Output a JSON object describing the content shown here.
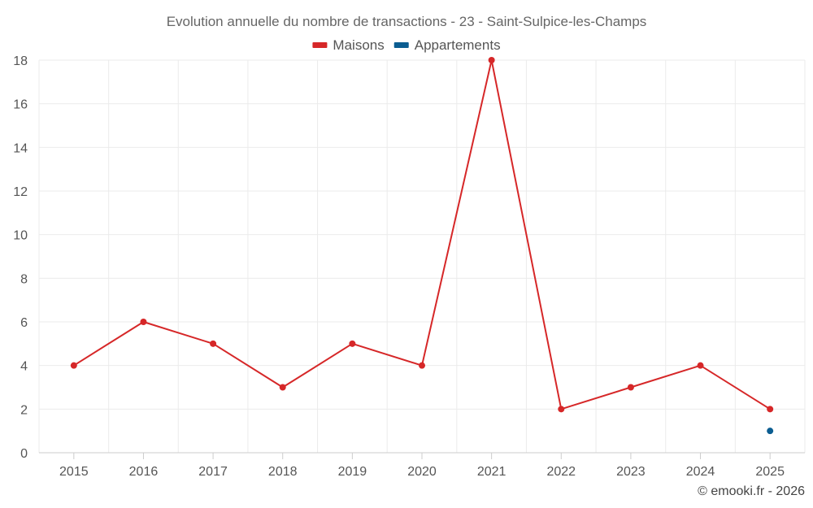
{
  "chart_data": {
    "type": "line",
    "title": "Evolution annuelle du nombre de transactions - 23 - Saint-Sulpice-les-Champs",
    "categories": [
      "2015",
      "2016",
      "2017",
      "2018",
      "2019",
      "2020",
      "2021",
      "2022",
      "2023",
      "2024",
      "2025"
    ],
    "series": [
      {
        "name": "Maisons",
        "color": "#d62728",
        "values": [
          4,
          6,
          5,
          3,
          5,
          4,
          18,
          2,
          3,
          4,
          2
        ]
      },
      {
        "name": "Appartements",
        "color": "#0b5d91",
        "values": [
          null,
          null,
          null,
          null,
          null,
          null,
          null,
          null,
          null,
          null,
          1
        ]
      }
    ],
    "ylim": [
      0,
      18
    ],
    "yticks": [
      0,
      2,
      4,
      6,
      8,
      10,
      12,
      14,
      16,
      18
    ],
    "grid": true,
    "legend_position": "top-center",
    "xlabel": "",
    "ylabel": ""
  },
  "credit": "© emooki.fr - 2026"
}
